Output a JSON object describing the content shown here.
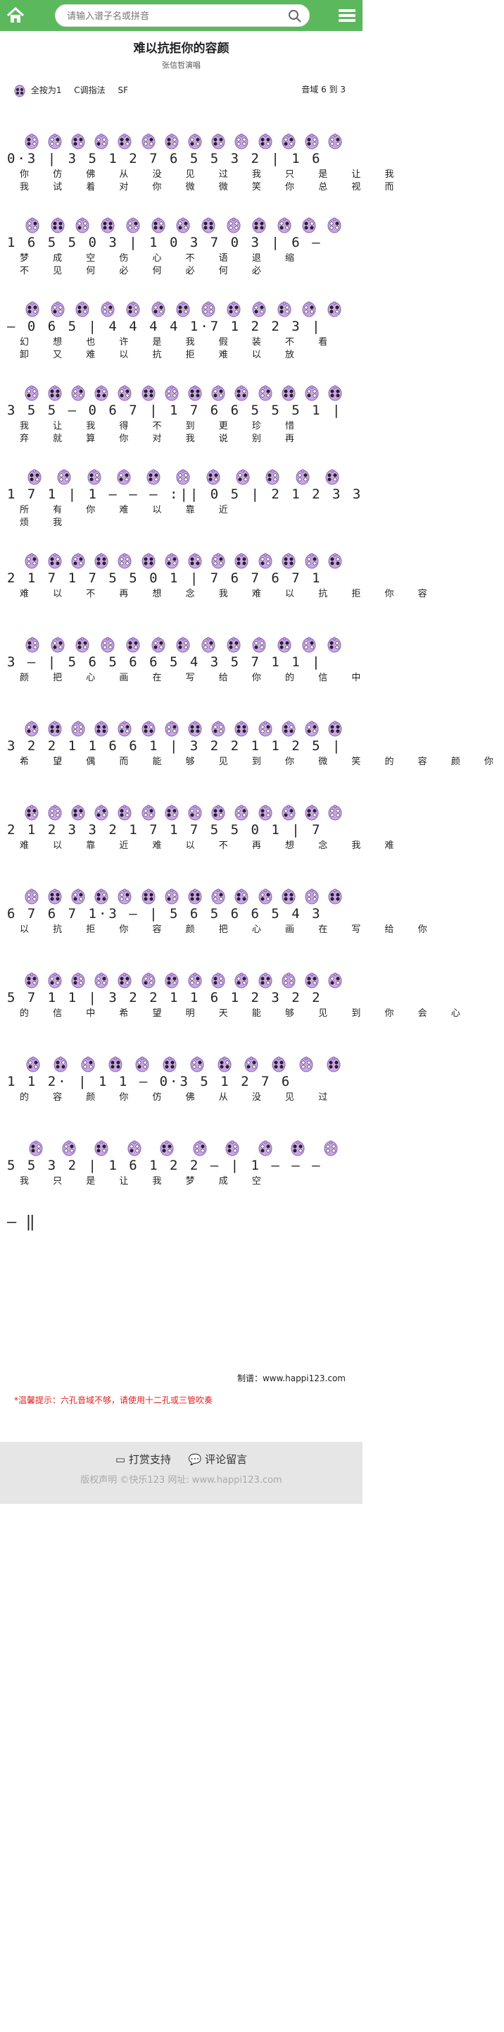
{
  "header": {
    "search_placeholder": "请输入谱子名或拼音"
  },
  "song": {
    "title": "难以抗拒你的容颜",
    "singer": "张信哲演唱",
    "key_full": "全按为1",
    "key_tone": "C调指法",
    "tuning": "SF",
    "range_label": "音域",
    "range_value": "6 到 3"
  },
  "score_lines": [
    {
      "notes": "0·3 | 3 5 1 2 7 6 5 5 3 2 | 1 6",
      "lyric1": "你 仿 佛 从 没 见 过 我 只 是 让 我",
      "lyric2": "我 试 着 对 你 微 微 笑 你 总 视 而"
    },
    {
      "notes": "1 6 5 5 0 3 | 1 0 3 7 0 3 | 6 —",
      "lyric1": "梦 成 空 伤 心 不 语 退 缩",
      "lyric2": "不 见 何 必 何 必 何 必"
    },
    {
      "notes": "— 0 6 5 | 4 4 4 4 1·7 1 2 2 3 |",
      "lyric1": "幻 想 也 许 是 我 假 装 不 看",
      "lyric2": "卸 又 难 以 抗 拒 难 以 放"
    },
    {
      "notes": "3 5 5 — 0 6 7 | 1 7 6 6 5 5 5 1 |",
      "lyric1": "我 让 我 得 不 到 更 珍 惜",
      "lyric2": "弃 就 算 你 对 我 说 别 再"
    },
    {
      "notes": "1 7 1 | 1 — — — :|| 0 5 | 2 1 2 3 3",
      "lyric1": "所 有 你 难 以 靠 近",
      "lyric2": "烦 我"
    },
    {
      "notes": "2 1 7 1 7 5 5 0 1 | 7 6 7 6 7 1",
      "lyric1": "难 以 不 再 想 念 我 难 以 抗 拒 你 容",
      "lyric2": ""
    },
    {
      "notes": "3 — | 5 6 5 6 6 5 4 3 5 7 1 1 |",
      "lyric1": "颜 把 心 画 在 写 给 你 的 信 中",
      "lyric2": ""
    },
    {
      "notes": "3 2 2 1 1 6 6 1 | 3 2 2 1 1 2 5 |",
      "lyric1": "希 望 偶 而 能 够 见 到 你 微 笑 的 容 颜 你",
      "lyric2": ""
    },
    {
      "notes": "2 1 2 3 3 2 1 7 1 7 5 5 0 1 | 7",
      "lyric1": "难 以 靠 近 难 以 不 再 想 念 我 难",
      "lyric2": ""
    },
    {
      "notes": "6 7 6 7 1·3 — | 5 6 5 6 6 5 4 3",
      "lyric1": "以 抗 拒 你 容 颜 把 心 画 在 写 给 你",
      "lyric2": ""
    },
    {
      "notes": "5 7 1 1 | 3 2 2 1 1 6 1 2 3 2 2",
      "lyric1": "的 信 中 希 望 明 天 能 够 见 到 你 会 心",
      "lyric2": ""
    },
    {
      "notes": "1 1 2· | 1 1 — 0·3 5 1 2 7 6",
      "lyric1": "的 容 颜 你 仿 佛 从 没 见 过",
      "lyric2": ""
    },
    {
      "notes": "5 5 3 2 | 1 6 1 2 2 — | 1 — — —",
      "lyric1": "我 只 是 让 我 梦 成 空",
      "lyric2": ""
    }
  ],
  "final_bar": "— ‖",
  "credit": "制谱：www.happi123.com",
  "tip": "*温馨提示：六孔音域不够，请使用十二孔或三管吹奏",
  "footer": {
    "reward": "打赏支持",
    "comment": "评论留言",
    "copyright": "版权声明   ©快乐123 网址: www.happi123.com"
  },
  "colors": {
    "brand_green": "#5cb85c",
    "ocarina_fill": "#c9a6e6",
    "ocarina_stroke": "#8a5cb8",
    "tip_red": "#e02020"
  }
}
